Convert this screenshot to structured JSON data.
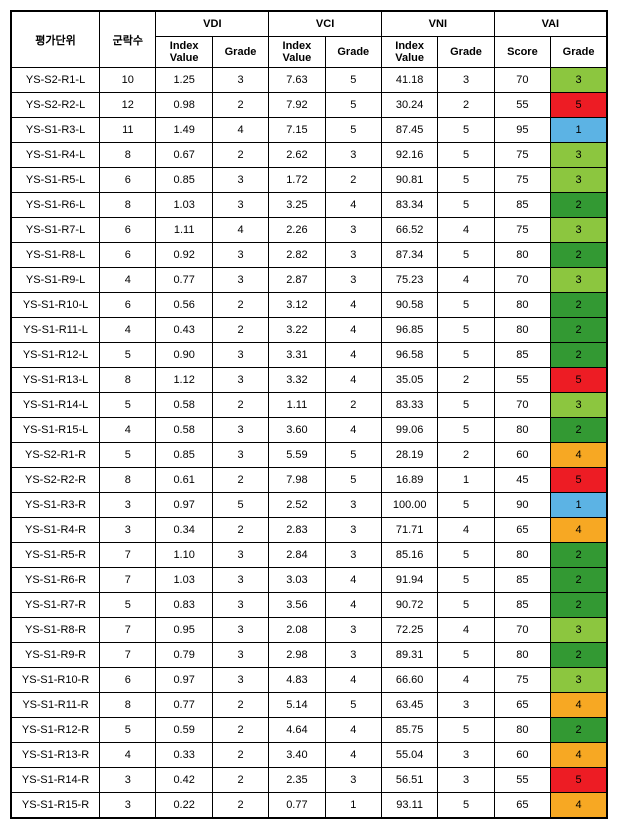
{
  "headers": {
    "eval": "평가단위",
    "count": "군락수",
    "vdi": "VDI",
    "vci": "VCI",
    "vni": "VNI",
    "vai": "VAI",
    "index": "Index\nValue",
    "grade": "Grade",
    "score": "Score"
  },
  "grade_colors": {
    "1": "#5cb3e4",
    "2": "#339933",
    "3": "#8cc63f",
    "4": "#f7a823",
    "5": "#ed1c24"
  },
  "rows": [
    {
      "id": "YS-S2-R1-L",
      "count": 10,
      "vdi_v": "1.25",
      "vdi_g": 3,
      "vci_v": "7.63",
      "vci_g": 5,
      "vni_v": "41.18",
      "vni_g": 3,
      "vai_s": 70,
      "vai_g": 3
    },
    {
      "id": "YS-S2-R2-L",
      "count": 12,
      "vdi_v": "0.98",
      "vdi_g": 2,
      "vci_v": "7.92",
      "vci_g": 5,
      "vni_v": "30.24",
      "vni_g": 2,
      "vai_s": 55,
      "vai_g": 5
    },
    {
      "id": "YS-S1-R3-L",
      "count": 11,
      "vdi_v": "1.49",
      "vdi_g": 4,
      "vci_v": "7.15",
      "vci_g": 5,
      "vni_v": "87.45",
      "vni_g": 5,
      "vai_s": 95,
      "vai_g": 1
    },
    {
      "id": "YS-S1-R4-L",
      "count": 8,
      "vdi_v": "0.67",
      "vdi_g": 2,
      "vci_v": "2.62",
      "vci_g": 3,
      "vni_v": "92.16",
      "vni_g": 5,
      "vai_s": 75,
      "vai_g": 3
    },
    {
      "id": "YS-S1-R5-L",
      "count": 6,
      "vdi_v": "0.85",
      "vdi_g": 3,
      "vci_v": "1.72",
      "vci_g": 2,
      "vni_v": "90.81",
      "vni_g": 5,
      "vai_s": 75,
      "vai_g": 3
    },
    {
      "id": "YS-S1-R6-L",
      "count": 8,
      "vdi_v": "1.03",
      "vdi_g": 3,
      "vci_v": "3.25",
      "vci_g": 4,
      "vni_v": "83.34",
      "vni_g": 5,
      "vai_s": 85,
      "vai_g": 2
    },
    {
      "id": "YS-S1-R7-L",
      "count": 6,
      "vdi_v": "1.11",
      "vdi_g": 4,
      "vci_v": "2.26",
      "vci_g": 3,
      "vni_v": "66.52",
      "vni_g": 4,
      "vai_s": 75,
      "vai_g": 3
    },
    {
      "id": "YS-S1-R8-L",
      "count": 6,
      "vdi_v": "0.92",
      "vdi_g": 3,
      "vci_v": "2.82",
      "vci_g": 3,
      "vni_v": "87.34",
      "vni_g": 5,
      "vai_s": 80,
      "vai_g": 2
    },
    {
      "id": "YS-S1-R9-L",
      "count": 4,
      "vdi_v": "0.77",
      "vdi_g": 3,
      "vci_v": "2.87",
      "vci_g": 3,
      "vni_v": "75.23",
      "vni_g": 4,
      "vai_s": 70,
      "vai_g": 3
    },
    {
      "id": "YS-S1-R10-L",
      "count": 6,
      "vdi_v": "0.56",
      "vdi_g": 2,
      "vci_v": "3.12",
      "vci_g": 4,
      "vni_v": "90.58",
      "vni_g": 5,
      "vai_s": 80,
      "vai_g": 2
    },
    {
      "id": "YS-S1-R11-L",
      "count": 4,
      "vdi_v": "0.43",
      "vdi_g": 2,
      "vci_v": "3.22",
      "vci_g": 4,
      "vni_v": "96.85",
      "vni_g": 5,
      "vai_s": 80,
      "vai_g": 2
    },
    {
      "id": "YS-S1-R12-L",
      "count": 5,
      "vdi_v": "0.90",
      "vdi_g": 3,
      "vci_v": "3.31",
      "vci_g": 4,
      "vni_v": "96.58",
      "vni_g": 5,
      "vai_s": 85,
      "vai_g": 2
    },
    {
      "id": "YS-S1-R13-L",
      "count": 8,
      "vdi_v": "1.12",
      "vdi_g": 3,
      "vci_v": "3.32",
      "vci_g": 4,
      "vni_v": "35.05",
      "vni_g": 2,
      "vai_s": 55,
      "vai_g": 5
    },
    {
      "id": "YS-S1-R14-L",
      "count": 5,
      "vdi_v": "0.58",
      "vdi_g": 2,
      "vci_v": "1.11",
      "vci_g": 2,
      "vni_v": "83.33",
      "vni_g": 5,
      "vai_s": 70,
      "vai_g": 3
    },
    {
      "id": "YS-S1-R15-L",
      "count": 4,
      "vdi_v": "0.58",
      "vdi_g": 3,
      "vci_v": "3.60",
      "vci_g": 4,
      "vni_v": "99.06",
      "vni_g": 5,
      "vai_s": 80,
      "vai_g": 2
    },
    {
      "id": "YS-S2-R1-R",
      "count": 5,
      "vdi_v": "0.85",
      "vdi_g": 3,
      "vci_v": "5.59",
      "vci_g": 5,
      "vni_v": "28.19",
      "vni_g": 2,
      "vai_s": 60,
      "vai_g": 4
    },
    {
      "id": "YS-S2-R2-R",
      "count": 8,
      "vdi_v": "0.61",
      "vdi_g": 2,
      "vci_v": "7.98",
      "vci_g": 5,
      "vni_v": "16.89",
      "vni_g": 1,
      "vai_s": 45,
      "vai_g": 5
    },
    {
      "id": "YS-S1-R3-R",
      "count": 3,
      "vdi_v": "0.97",
      "vdi_g": 5,
      "vci_v": "2.52",
      "vci_g": 3,
      "vni_v": "100.00",
      "vni_g": 5,
      "vai_s": 90,
      "vai_g": 1
    },
    {
      "id": "YS-S1-R4-R",
      "count": 3,
      "vdi_v": "0.34",
      "vdi_g": 2,
      "vci_v": "2.83",
      "vci_g": 3,
      "vni_v": "71.71",
      "vni_g": 4,
      "vai_s": 65,
      "vai_g": 4
    },
    {
      "id": "YS-S1-R5-R",
      "count": 7,
      "vdi_v": "1.10",
      "vdi_g": 3,
      "vci_v": "2.84",
      "vci_g": 3,
      "vni_v": "85.16",
      "vni_g": 5,
      "vai_s": 80,
      "vai_g": 2
    },
    {
      "id": "YS-S1-R6-R",
      "count": 7,
      "vdi_v": "1.03",
      "vdi_g": 3,
      "vci_v": "3.03",
      "vci_g": 4,
      "vni_v": "91.94",
      "vni_g": 5,
      "vai_s": 85,
      "vai_g": 2
    },
    {
      "id": "YS-S1-R7-R",
      "count": 5,
      "vdi_v": "0.83",
      "vdi_g": 3,
      "vci_v": "3.56",
      "vci_g": 4,
      "vni_v": "90.72",
      "vni_g": 5,
      "vai_s": 85,
      "vai_g": 2
    },
    {
      "id": "YS-S1-R8-R",
      "count": 7,
      "vdi_v": "0.95",
      "vdi_g": 3,
      "vci_v": "2.08",
      "vci_g": 3,
      "vni_v": "72.25",
      "vni_g": 4,
      "vai_s": 70,
      "vai_g": 3
    },
    {
      "id": "YS-S1-R9-R",
      "count": 7,
      "vdi_v": "0.79",
      "vdi_g": 3,
      "vci_v": "2.98",
      "vci_g": 3,
      "vni_v": "89.31",
      "vni_g": 5,
      "vai_s": 80,
      "vai_g": 2
    },
    {
      "id": "YS-S1-R10-R",
      "count": 6,
      "vdi_v": "0.97",
      "vdi_g": 3,
      "vci_v": "4.83",
      "vci_g": 4,
      "vni_v": "66.60",
      "vni_g": 4,
      "vai_s": 75,
      "vai_g": 3
    },
    {
      "id": "YS-S1-R11-R",
      "count": 8,
      "vdi_v": "0.77",
      "vdi_g": 2,
      "vci_v": "5.14",
      "vci_g": 5,
      "vni_v": "63.45",
      "vni_g": 3,
      "vai_s": 65,
      "vai_g": 4
    },
    {
      "id": "YS-S1-R12-R",
      "count": 5,
      "vdi_v": "0.59",
      "vdi_g": 2,
      "vci_v": "4.64",
      "vci_g": 4,
      "vni_v": "85.75",
      "vni_g": 5,
      "vai_s": 80,
      "vai_g": 2
    },
    {
      "id": "YS-S1-R13-R",
      "count": 4,
      "vdi_v": "0.33",
      "vdi_g": 2,
      "vci_v": "3.40",
      "vci_g": 4,
      "vni_v": "55.04",
      "vni_g": 3,
      "vai_s": 60,
      "vai_g": 4
    },
    {
      "id": "YS-S1-R14-R",
      "count": 3,
      "vdi_v": "0.42",
      "vdi_g": 2,
      "vci_v": "2.35",
      "vci_g": 3,
      "vni_v": "56.51",
      "vni_g": 3,
      "vai_s": 55,
      "vai_g": 5
    },
    {
      "id": "YS-S1-R15-R",
      "count": 3,
      "vdi_v": "0.22",
      "vdi_g": 2,
      "vci_v": "0.77",
      "vci_g": 1,
      "vni_v": "93.11",
      "vni_g": 5,
      "vai_s": 65,
      "vai_g": 4
    }
  ]
}
